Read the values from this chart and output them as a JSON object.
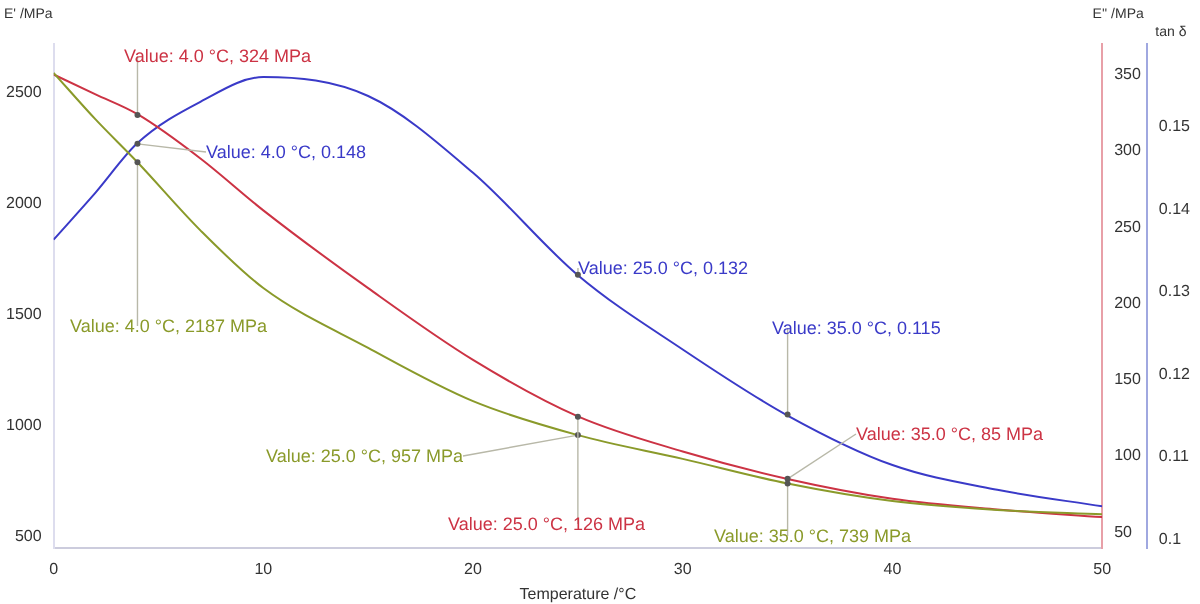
{
  "chart_data": {
    "type": "line",
    "xlabel": "Temperature /°C",
    "ylabel": "E' /MPa",
    "y2label": "E'' /MPa",
    "y3label": "tan δ",
    "x": [
      0,
      2,
      4,
      7,
      10,
      15,
      20,
      25,
      30,
      35,
      40,
      45,
      50
    ],
    "series": [
      {
        "color": "#8a9a2a",
        "values": [
          2590,
          2380,
          2187,
          1880,
          1620,
          1350,
          1110,
          957,
          850,
          739,
          660,
          620,
          600
        ]
      },
      {
        "color": "#cc3344",
        "axis": "y2",
        "values": [
          350,
          337,
          324,
          295,
          261,
          210,
          163,
          126,
          103,
          85,
          72,
          65,
          60
        ]
      },
      {
        "color": "#3a3ac8",
        "axis": "y3",
        "values": [
          0.1363,
          0.142,
          0.148,
          0.153,
          0.156,
          0.1537,
          0.1444,
          0.132,
          0.123,
          0.115,
          0.109,
          0.106,
          0.104
        ]
      }
    ],
    "xlim": [
      0,
      50
    ],
    "xticks": [
      0,
      10,
      20,
      30,
      40,
      50
    ],
    "ylim": [
      450,
      2720
    ],
    "yticks": [
      500,
      1000,
      1500,
      2000,
      2500
    ],
    "y2lim": [
      40,
      370
    ],
    "y2ticks": [
      50,
      100,
      150,
      200,
      250,
      300,
      350
    ],
    "y3lim": [
      0.099,
      0.16
    ],
    "y3ticks": [
      0.1,
      0.11,
      0.12,
      0.13,
      0.14,
      0.15
    ],
    "grid": false,
    "legend": false,
    "marker": "none",
    "line_style": "solid",
    "annotations": [
      {
        "text": "Value: 4.0 °C, 324 MPa",
        "x": 4,
        "y": 2400
      },
      {
        "text": "Value: 4.0 °C, 0.148",
        "x": 4,
        "y": 2270
      },
      {
        "text": "Value: 4.0 °C, 2187 MPa",
        "x": 4,
        "y": 2187
      },
      {
        "text": "Value: 25.0 °C, 0.132",
        "x": 25,
        "y": 1680
      },
      {
        "text": "Value: 35.0 °C, 0.115",
        "x": 35,
        "y": 1050
      },
      {
        "text": "Value: 35.0 °C, 85 MPa",
        "x": 35,
        "y": 760
      },
      {
        "text": "Value: 25.0 °C, 957 MPa",
        "x": 25,
        "y": 957
      },
      {
        "text": "Value: 25.0 °C, 126 MPa",
        "x": 25,
        "y": 1040
      },
      {
        "text": "Value: 35.0 °C, 739 MPa",
        "x": 35,
        "y": 739
      }
    ]
  }
}
